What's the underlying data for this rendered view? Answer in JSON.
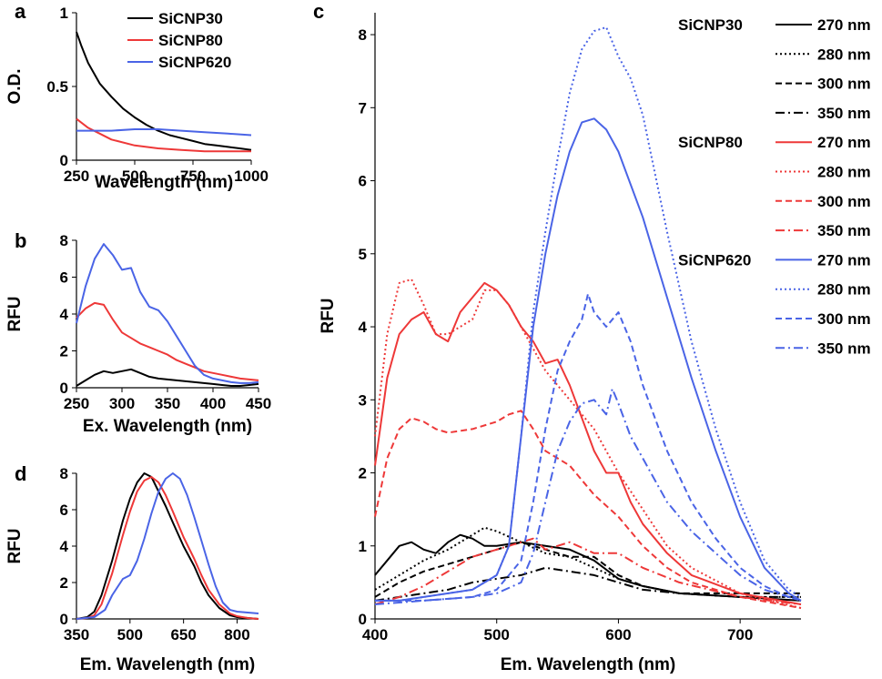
{
  "figure": {
    "panels": [
      "a",
      "b",
      "c",
      "d"
    ]
  },
  "chart_data": [
    {
      "panel": "a",
      "type": "line",
      "xlabel": "Wavelength (nm)",
      "ylabel": "O.D.",
      "xlim": [
        250,
        1000
      ],
      "ylim": [
        0,
        1
      ],
      "xticks": [
        250,
        500,
        750,
        1000
      ],
      "yticks": [
        0,
        0.5,
        1
      ],
      "yticklabels": [
        "0",
        "0.5",
        "1"
      ],
      "legend": "top-right",
      "grid": false,
      "series": [
        {
          "name": "SiCNP30",
          "color": "#000000",
          "x": [
            250,
            270,
            300,
            350,
            400,
            450,
            500,
            550,
            600,
            650,
            700,
            750,
            800,
            850,
            900,
            950,
            1000
          ],
          "y": [
            0.87,
            0.78,
            0.66,
            0.52,
            0.43,
            0.35,
            0.29,
            0.24,
            0.2,
            0.17,
            0.15,
            0.13,
            0.11,
            0.1,
            0.09,
            0.08,
            0.07
          ]
        },
        {
          "name": "SiCNP80",
          "color": "#ee3838",
          "x": [
            250,
            300,
            350,
            400,
            500,
            600,
            700,
            800,
            900,
            1000
          ],
          "y": [
            0.28,
            0.22,
            0.18,
            0.14,
            0.1,
            0.08,
            0.07,
            0.06,
            0.06,
            0.06
          ]
        },
        {
          "name": "SiCNP620",
          "color": "#4a64e6",
          "x": [
            250,
            400,
            500,
            600,
            700,
            800,
            900,
            1000
          ],
          "y": [
            0.2,
            0.2,
            0.21,
            0.21,
            0.2,
            0.19,
            0.18,
            0.17
          ]
        }
      ]
    },
    {
      "panel": "b",
      "type": "line",
      "xlabel": "Ex. Wavelength (nm)",
      "ylabel": "RFU",
      "xlim": [
        250,
        450
      ],
      "ylim": [
        0,
        8
      ],
      "xticks": [
        250,
        300,
        350,
        400,
        450
      ],
      "yticks": [
        0,
        2,
        4,
        6,
        8
      ],
      "grid": false,
      "series": [
        {
          "name": "SiCNP30",
          "color": "#000000",
          "x": [
            250,
            260,
            270,
            280,
            290,
            300,
            310,
            320,
            330,
            340,
            350,
            360,
            370,
            380,
            390,
            400,
            410,
            420,
            430,
            440,
            450
          ],
          "y": [
            0.1,
            0.4,
            0.7,
            0.9,
            0.8,
            0.9,
            1.0,
            0.8,
            0.6,
            0.5,
            0.45,
            0.4,
            0.35,
            0.3,
            0.25,
            0.2,
            0.15,
            0.1,
            0.1,
            0.15,
            0.2
          ]
        },
        {
          "name": "SiCNP80",
          "color": "#ee3838",
          "x": [
            250,
            260,
            270,
            280,
            290,
            300,
            310,
            320,
            330,
            340,
            350,
            360,
            370,
            380,
            390,
            400,
            410,
            420,
            430,
            440,
            450
          ],
          "y": [
            3.8,
            4.3,
            4.6,
            4.5,
            3.7,
            3.0,
            2.7,
            2.4,
            2.2,
            2.0,
            1.8,
            1.5,
            1.3,
            1.1,
            0.9,
            0.8,
            0.7,
            0.6,
            0.5,
            0.45,
            0.4
          ]
        },
        {
          "name": "SiCNP620",
          "color": "#4a64e6",
          "x": [
            250,
            260,
            270,
            280,
            290,
            300,
            310,
            320,
            330,
            340,
            350,
            360,
            370,
            380,
            390,
            400,
            410,
            420,
            430,
            440,
            450
          ],
          "y": [
            3.5,
            5.5,
            7.0,
            7.8,
            7.2,
            6.4,
            6.5,
            5.2,
            4.4,
            4.2,
            3.6,
            2.8,
            2.0,
            1.2,
            0.7,
            0.5,
            0.4,
            0.3,
            0.25,
            0.25,
            0.3
          ]
        }
      ]
    },
    {
      "panel": "c",
      "type": "line",
      "xlabel": "Em. Wavelength (nm)",
      "ylabel": "RFU",
      "xlim": [
        400,
        750
      ],
      "ylim": [
        0,
        8.3
      ],
      "xticks": [
        400,
        500,
        600,
        700
      ],
      "yticks": [
        0,
        1,
        2,
        3,
        4,
        5,
        6,
        7,
        8
      ],
      "legend": "top-right",
      "grid": false,
      "legend_groups": [
        "SiCNP30",
        "SiCNP80",
        "SiCNP620"
      ],
      "series": [
        {
          "name": "270 nm",
          "group": "SiCNP30",
          "color": "#000000",
          "dash": "solid",
          "x": [
            400,
            410,
            420,
            430,
            440,
            450,
            460,
            470,
            480,
            490,
            500,
            520,
            540,
            560,
            580,
            600,
            620,
            650,
            700,
            750
          ],
          "y": [
            0.6,
            0.8,
            1.0,
            1.05,
            0.95,
            0.9,
            1.05,
            1.15,
            1.1,
            1.0,
            1.0,
            1.05,
            1.0,
            0.95,
            0.8,
            0.55,
            0.45,
            0.35,
            0.3,
            0.25
          ]
        },
        {
          "name": "280 nm",
          "group": "SiCNP30",
          "color": "#000000",
          "dash": "dotted",
          "x": [
            400,
            420,
            440,
            460,
            480,
            490,
            500,
            520,
            540,
            560,
            580,
            600,
            620,
            650,
            700,
            750
          ],
          "y": [
            0.4,
            0.6,
            0.8,
            0.95,
            1.15,
            1.25,
            1.2,
            1.05,
            0.9,
            0.85,
            0.7,
            0.55,
            0.45,
            0.35,
            0.3,
            0.3
          ]
        },
        {
          "name": "300 nm",
          "group": "SiCNP30",
          "color": "#000000",
          "dash": "dashed",
          "x": [
            400,
            420,
            440,
            460,
            480,
            500,
            520,
            540,
            560,
            580,
            600,
            620,
            650,
            700,
            750
          ],
          "y": [
            0.3,
            0.5,
            0.65,
            0.75,
            0.85,
            0.95,
            1.05,
            0.95,
            0.85,
            0.85,
            0.6,
            0.45,
            0.35,
            0.35,
            0.35
          ]
        },
        {
          "name": "350 nm",
          "group": "SiCNP30",
          "color": "#000000",
          "dash": "dashdot",
          "x": [
            400,
            420,
            440,
            460,
            480,
            500,
            520,
            540,
            560,
            580,
            600,
            620,
            650,
            700,
            750
          ],
          "y": [
            0.25,
            0.3,
            0.35,
            0.4,
            0.5,
            0.55,
            0.6,
            0.7,
            0.65,
            0.6,
            0.5,
            0.4,
            0.35,
            0.3,
            0.3
          ]
        },
        {
          "name": "270 nm",
          "group": "SiCNP80",
          "color": "#ee3838",
          "dash": "solid",
          "x": [
            400,
            410,
            420,
            430,
            440,
            450,
            460,
            470,
            480,
            490,
            500,
            510,
            520,
            530,
            540,
            550,
            560,
            580,
            590,
            600,
            610,
            620,
            640,
            660,
            700,
            750
          ],
          "y": [
            2.1,
            3.3,
            3.9,
            4.1,
            4.2,
            3.9,
            3.8,
            4.2,
            4.4,
            4.6,
            4.5,
            4.3,
            4.0,
            3.8,
            3.5,
            3.55,
            3.2,
            2.3,
            2.0,
            2.0,
            1.6,
            1.3,
            0.9,
            0.6,
            0.35,
            0.2
          ]
        },
        {
          "name": "280 nm",
          "group": "SiCNP80",
          "color": "#ee3838",
          "dash": "dotted",
          "x": [
            400,
            410,
            420,
            430,
            440,
            450,
            460,
            470,
            480,
            490,
            500,
            510,
            520,
            530,
            540,
            560,
            580,
            600,
            620,
            640,
            660,
            700,
            750
          ],
          "y": [
            2.5,
            3.9,
            4.6,
            4.65,
            4.3,
            3.9,
            3.9,
            4.0,
            4.1,
            4.5,
            4.5,
            4.3,
            4.0,
            3.7,
            3.4,
            3.0,
            2.6,
            2.0,
            1.5,
            1.0,
            0.7,
            0.35,
            0.15
          ]
        },
        {
          "name": "300 nm",
          "group": "SiCNP80",
          "color": "#ee3838",
          "dash": "dashed",
          "x": [
            400,
            410,
            420,
            430,
            440,
            450,
            460,
            480,
            500,
            510,
            520,
            530,
            540,
            560,
            580,
            600,
            620,
            640,
            660,
            700,
            750
          ],
          "y": [
            1.4,
            2.2,
            2.6,
            2.75,
            2.7,
            2.6,
            2.55,
            2.6,
            2.7,
            2.8,
            2.85,
            2.6,
            2.3,
            2.1,
            1.7,
            1.4,
            1.0,
            0.7,
            0.5,
            0.3,
            0.15
          ]
        },
        {
          "name": "350 nm",
          "group": "SiCNP80",
          "color": "#ee3838",
          "dash": "dashdot",
          "x": [
            400,
            420,
            440,
            460,
            480,
            500,
            520,
            530,
            540,
            560,
            580,
            600,
            620,
            650,
            700,
            750
          ],
          "y": [
            0.2,
            0.3,
            0.45,
            0.65,
            0.85,
            0.95,
            1.05,
            1.1,
            0.95,
            1.05,
            0.9,
            0.9,
            0.7,
            0.5,
            0.3,
            0.2
          ]
        },
        {
          "name": "270 nm",
          "group": "SiCNP620",
          "color": "#4a64e6",
          "dash": "solid",
          "x": [
            400,
            420,
            440,
            460,
            480,
            500,
            510,
            520,
            530,
            540,
            550,
            560,
            570,
            580,
            590,
            600,
            620,
            640,
            660,
            680,
            700,
            720,
            740,
            750
          ],
          "y": [
            0.25,
            0.25,
            0.3,
            0.35,
            0.4,
            0.6,
            1.0,
            2.5,
            4.0,
            5.0,
            5.8,
            6.4,
            6.8,
            6.85,
            6.7,
            6.4,
            5.5,
            4.4,
            3.3,
            2.3,
            1.4,
            0.7,
            0.35,
            0.25
          ]
        },
        {
          "name": "280 nm",
          "group": "SiCNP620",
          "color": "#4a64e6",
          "dash": "dotted",
          "x": [
            400,
            420,
            440,
            460,
            480,
            500,
            510,
            520,
            530,
            540,
            550,
            560,
            570,
            580,
            590,
            600,
            610,
            620,
            640,
            660,
            680,
            700,
            720,
            740,
            750
          ],
          "y": [
            0.25,
            0.25,
            0.3,
            0.35,
            0.4,
            0.6,
            1.0,
            2.5,
            4.2,
            5.3,
            6.3,
            7.2,
            7.8,
            8.05,
            8.1,
            7.7,
            7.4,
            6.9,
            5.3,
            3.8,
            2.6,
            1.6,
            0.8,
            0.4,
            0.3
          ]
        },
        {
          "name": "300 nm",
          "group": "SiCNP620",
          "color": "#4a64e6",
          "dash": "dashed",
          "x": [
            400,
            440,
            480,
            500,
            520,
            530,
            540,
            550,
            560,
            570,
            575,
            580,
            590,
            600,
            610,
            620,
            640,
            660,
            680,
            700,
            720,
            740,
            750
          ],
          "y": [
            0.25,
            0.25,
            0.3,
            0.4,
            0.8,
            1.6,
            2.6,
            3.4,
            3.8,
            4.1,
            4.45,
            4.2,
            4.0,
            4.2,
            3.8,
            3.2,
            2.3,
            1.6,
            1.1,
            0.7,
            0.45,
            0.3,
            0.25
          ]
        },
        {
          "name": "350 nm",
          "group": "SiCNP620",
          "color": "#4a64e6",
          "dash": "dashdot",
          "x": [
            400,
            440,
            480,
            500,
            520,
            530,
            540,
            550,
            560,
            570,
            580,
            590,
            595,
            600,
            610,
            620,
            640,
            660,
            680,
            700,
            720,
            740,
            750
          ],
          "y": [
            0.2,
            0.25,
            0.3,
            0.35,
            0.5,
            0.9,
            1.6,
            2.3,
            2.7,
            2.95,
            3.0,
            2.8,
            3.15,
            2.95,
            2.5,
            2.2,
            1.6,
            1.2,
            0.9,
            0.6,
            0.4,
            0.3,
            0.25
          ]
        }
      ]
    },
    {
      "panel": "d",
      "type": "line",
      "xlabel": "Em. Wavelength (nm)",
      "ylabel": "RFU",
      "xlim": [
        350,
        860
      ],
      "ylim": [
        0,
        8
      ],
      "xticks": [
        350,
        500,
        650,
        800
      ],
      "yticks": [
        0,
        2,
        4,
        6,
        8
      ],
      "grid": false,
      "series": [
        {
          "name": "SiCNP30",
          "color": "#000000",
          "x": [
            350,
            380,
            400,
            420,
            450,
            480,
            500,
            520,
            540,
            560,
            580,
            600,
            620,
            650,
            680,
            700,
            720,
            750,
            780,
            800,
            830,
            860
          ],
          "y": [
            0,
            0.1,
            0.4,
            1.3,
            3.2,
            5.4,
            6.6,
            7.5,
            8.0,
            7.8,
            7.0,
            6.2,
            5.3,
            4.0,
            2.9,
            2.0,
            1.3,
            0.6,
            0.2,
            0.1,
            0.05,
            0
          ]
        },
        {
          "name": "SiCNP80",
          "color": "#ee3838",
          "x": [
            350,
            380,
            400,
            420,
            450,
            480,
            500,
            520,
            540,
            560,
            580,
            600,
            620,
            650,
            680,
            700,
            720,
            750,
            780,
            800,
            830,
            860
          ],
          "y": [
            0,
            0.05,
            0.2,
            0.8,
            2.5,
            4.6,
            5.9,
            7.0,
            7.6,
            7.8,
            7.5,
            6.8,
            5.9,
            4.5,
            3.3,
            2.4,
            1.6,
            0.8,
            0.3,
            0.15,
            0.05,
            0
          ]
        },
        {
          "name": "SiCNP620",
          "color": "#4a64e6",
          "x": [
            350,
            400,
            430,
            450,
            480,
            500,
            520,
            540,
            560,
            580,
            600,
            620,
            640,
            660,
            680,
            700,
            720,
            740,
            760,
            780,
            800,
            830,
            860
          ],
          "y": [
            0,
            0.1,
            0.5,
            1.3,
            2.2,
            2.4,
            3.2,
            4.4,
            5.8,
            7.0,
            7.7,
            8.0,
            7.7,
            6.8,
            5.6,
            4.3,
            3.0,
            1.8,
            0.9,
            0.5,
            0.4,
            0.35,
            0.3
          ]
        }
      ]
    }
  ]
}
